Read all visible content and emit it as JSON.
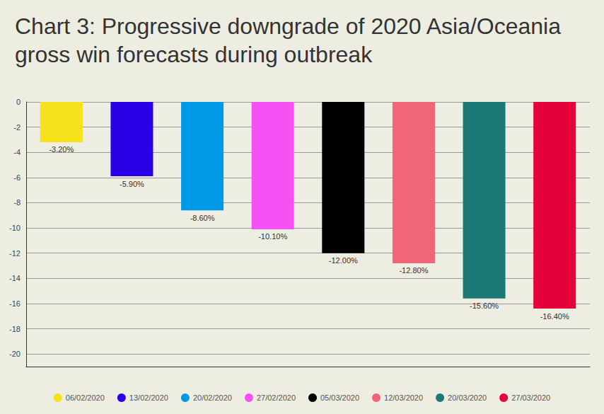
{
  "chart_data": {
    "type": "bar",
    "title": "Chart 3: Progressive downgrade of 2020 Asia/Oceania gross win forecasts during outbreak",
    "categories": [
      "06/02/2020",
      "13/02/2020",
      "20/02/2020",
      "27/02/2020",
      "05/03/2020",
      "12/03/2020",
      "20/03/2020",
      "27/03/2020"
    ],
    "values": [
      -3.2,
      -5.9,
      -8.6,
      -10.1,
      -12,
      -12.8,
      -15.6,
      -16.4
    ],
    "value_labels": [
      "-3.20%",
      "-5.90%",
      "-8.60%",
      "-10.10%",
      "-12.00%",
      "-12.80%",
      "-15.60%",
      "-16.40%"
    ],
    "colors": [
      "#f7e11b",
      "#2a00e6",
      "#0099e6",
      "#f551f5",
      "#000000",
      "#ee6677",
      "#1b7a75",
      "#e4003a"
    ],
    "ylim": [
      -21,
      0
    ],
    "yticks": [
      0,
      -2,
      -4,
      -6,
      -8,
      -10,
      -12,
      -14,
      -16,
      -18,
      -20
    ],
    "grid": true,
    "legend": "bottom",
    "data_labels": true,
    "tick_labels": "y"
  }
}
